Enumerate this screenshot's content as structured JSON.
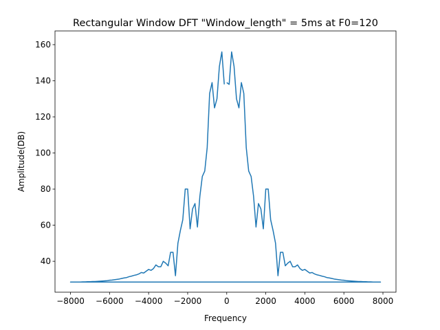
{
  "chart_data": {
    "type": "line",
    "title": "Rectangular Window DFT \"Window_length\" = 5ms at F0=120",
    "x_label": "Frequency",
    "y_label": "Amplitude(DB)",
    "color": "#1f77b4",
    "x": [
      0,
      125,
      250,
      375,
      500,
      625,
      750,
      875,
      1000,
      1125,
      1250,
      1375,
      1500,
      1625,
      1750,
      1875,
      2000,
      2125,
      2250,
      2375,
      2500,
      2625,
      2750,
      2875,
      3000,
      3125,
      3250,
      3375,
      3500,
      3625,
      3750,
      3875,
      4000,
      4125,
      4250,
      4375,
      4500,
      4625,
      4750,
      4875,
      5000,
      5125,
      5250,
      5375,
      5500,
      5625,
      5750,
      5875,
      6000,
      6125,
      6250,
      6375,
      6500,
      6625,
      6750,
      6875,
      7000,
      7125,
      7250,
      7375,
      7500,
      7625,
      7750,
      7875,
      -8000,
      -7875,
      -7750,
      -7625,
      -7500,
      -7375,
      -7250,
      -7125,
      -7000,
      -6875,
      -6750,
      -6625,
      -6500,
      -6375,
      -6250,
      -6125,
      -6000,
      -5875,
      -5750,
      -5625,
      -5500,
      -5375,
      -5250,
      -5125,
      -5000,
      -4875,
      -4750,
      -4625,
      -4500,
      -4375,
      -4250,
      -4125,
      -4000,
      -3875,
      -3750,
      -3625,
      -3500,
      -3375,
      -3250,
      -3125,
      -3000,
      -2875,
      -2750,
      -2625,
      -2500,
      -2375,
      -2250,
      -2125,
      -2000,
      -1875,
      -1750,
      -1625,
      -1500,
      -1375,
      -1250,
      -1125,
      -1000,
      -875,
      -750,
      -625,
      -500,
      -375,
      -250,
      -125
    ],
    "values": [
      139,
      138,
      156,
      148,
      130,
      125,
      139,
      133,
      103,
      90,
      87,
      76,
      59,
      72,
      69,
      58,
      80,
      80,
      63,
      57,
      50,
      32,
      45,
      45,
      37.5,
      39,
      40,
      37,
      37,
      38,
      36,
      35,
      35.5,
      34.5,
      33.5,
      33.8,
      33,
      32.5,
      32.2,
      31.8,
      31.5,
      31,
      30.8,
      30.5,
      30.2,
      30,
      29.8,
      29.6,
      29.5,
      29.3,
      29.2,
      29.1,
      29,
      28.9,
      28.8,
      28.8,
      28.7,
      28.7,
      28.6,
      28.6,
      28.5,
      28.5,
      28.5,
      28.5,
      28.5,
      28.5,
      28.5,
      28.5,
      28.5,
      28.6,
      28.6,
      28.7,
      28.7,
      28.8,
      28.8,
      28.9,
      29,
      29.1,
      29.2,
      29.3,
      29.5,
      29.6,
      29.8,
      30,
      30.2,
      30.5,
      30.8,
      31,
      31.5,
      31.8,
      32.2,
      32.5,
      33,
      33.8,
      33.5,
      34.5,
      35.5,
      35,
      36,
      38,
      37,
      37,
      40,
      39,
      37.5,
      45,
      45,
      32,
      50,
      57,
      63,
      80,
      80,
      58,
      69,
      72,
      59,
      76,
      87,
      90,
      103,
      133,
      139,
      125,
      130,
      148,
      156,
      138
    ],
    "xlim": [
      -8794,
      8669
    ],
    "ylim": [
      22.9,
      167.6
    ],
    "xticks": [
      {
        "value": -8000,
        "label": "−8000"
      },
      {
        "value": -6000,
        "label": "−6000"
      },
      {
        "value": -4000,
        "label": "−4000"
      },
      {
        "value": -2000,
        "label": "−2000"
      },
      0,
      2000,
      4000,
      6000,
      8000
    ],
    "yticks": [
      40,
      60,
      80,
      100,
      120,
      140,
      160
    ]
  }
}
